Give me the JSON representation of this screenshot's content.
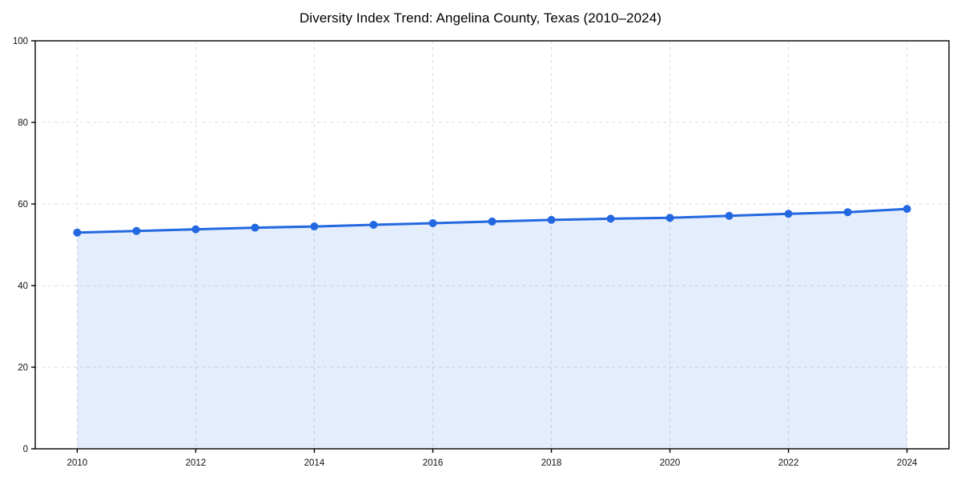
{
  "title": "Diversity Index Trend: Angelina County, Texas (2010–2024)",
  "chart_data": {
    "type": "area",
    "title": "Diversity Index Trend: Angelina County, Texas (2010–2024)",
    "x": [
      2010,
      2011,
      2012,
      2013,
      2014,
      2015,
      2016,
      2017,
      2018,
      2019,
      2020,
      2021,
      2022,
      2023,
      2024
    ],
    "series": [
      {
        "name": "Diversity Index",
        "values": [
          53.0,
          53.4,
          53.8,
          54.2,
          54.5,
          54.9,
          55.3,
          55.7,
          56.1,
          56.4,
          56.6,
          57.1,
          57.6,
          58.0,
          58.8
        ]
      }
    ],
    "xlabel": "",
    "ylabel": "",
    "xlim": [
      2010,
      2024
    ],
    "ylim": [
      0,
      100
    ],
    "xticks": [
      2010,
      2012,
      2014,
      2016,
      2018,
      2020,
      2022,
      2024
    ],
    "yticks": [
      0,
      20,
      40,
      60,
      80,
      100
    ],
    "grid": true,
    "grid_style": "dashed",
    "legend": "none",
    "marker": "circle",
    "colors": {
      "line": "#2368e0",
      "marker": "#2368e0",
      "area_fill": "rgba(35,104,224,0.12)",
      "grid": "#dedede",
      "axis": "#000000",
      "tick_text": "#111111",
      "background": "#ffffff"
    }
  }
}
